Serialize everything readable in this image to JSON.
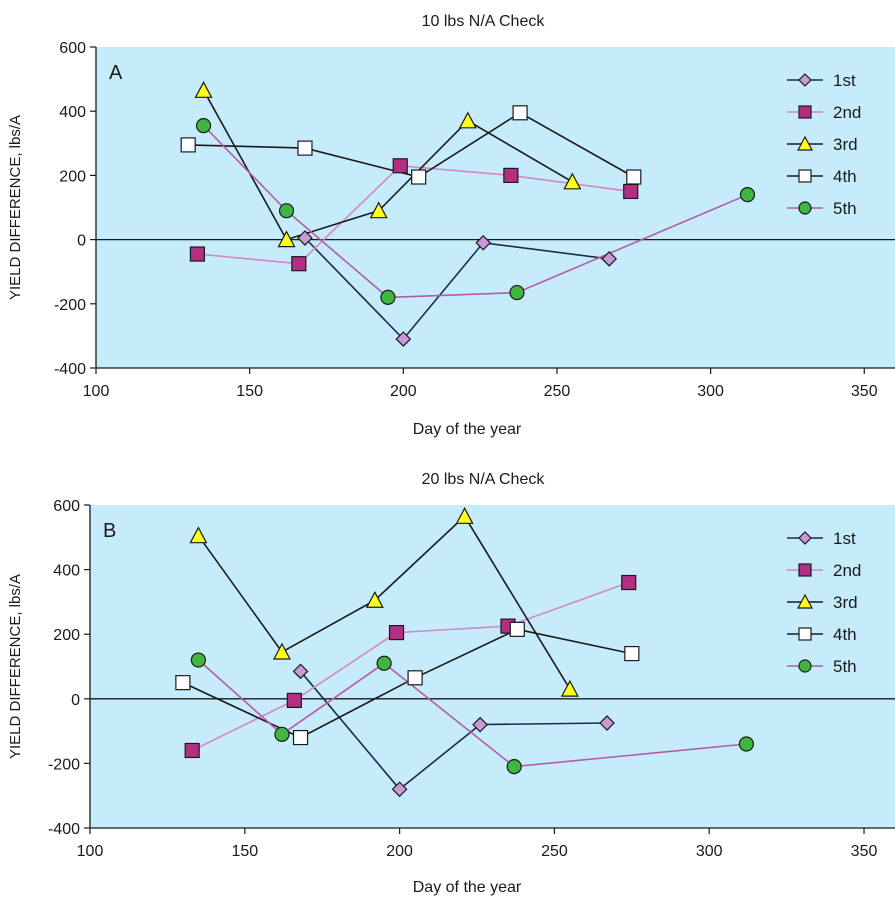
{
  "chart_data": [
    {
      "type": "line",
      "panel_label": "A",
      "title": "10 lbs N/A Check",
      "xlabel": "Day of the year",
      "ylabel": "YIELD DIFFERENCE, lbs/A",
      "xlim": [
        100,
        360
      ],
      "ylim": [
        -400,
        600
      ],
      "xticks": [
        100,
        150,
        200,
        250,
        300,
        350
      ],
      "yticks": [
        -400,
        -200,
        0,
        200,
        400,
        600
      ],
      "zero_line": true,
      "legend_position": "right",
      "series": [
        {
          "name": "1st",
          "marker": "diamond",
          "color": "#c99ad8",
          "line_color": "#1c2b48",
          "x": [
            168,
            200,
            226,
            267
          ],
          "y": [
            5,
            -310,
            -10,
            -60
          ]
        },
        {
          "name": "2nd",
          "marker": "square",
          "color": "#b22f84",
          "line_color": "#d488c2",
          "x": [
            133,
            166,
            199,
            235,
            274
          ],
          "y": [
            -45,
            -75,
            230,
            200,
            150
          ]
        },
        {
          "name": "3rd",
          "marker": "triangle",
          "color": "#ffff1a",
          "line_color": "#1a1a1a",
          "x": [
            135,
            162,
            192,
            221,
            255
          ],
          "y": [
            465,
            0,
            90,
            370,
            180
          ]
        },
        {
          "name": "4th",
          "marker": "open-square",
          "color": "#ffffff",
          "line_color": "#1a1a1a",
          "x": [
            130,
            168,
            205,
            238,
            275
          ],
          "y": [
            295,
            285,
            195,
            395,
            195
          ]
        },
        {
          "name": "5th",
          "marker": "circle",
          "color": "#3fb63f",
          "line_color": "#b45aa8",
          "x": [
            135,
            162,
            195,
            237,
            312
          ],
          "y": [
            355,
            90,
            -180,
            -165,
            140
          ]
        }
      ]
    },
    {
      "type": "line",
      "panel_label": "B",
      "title": "20 lbs N/A Check",
      "xlabel": "Day of the year",
      "ylabel": "YIELD DIFFERENCE, lbs/A",
      "xlim": [
        100,
        360
      ],
      "ylim": [
        -400,
        600
      ],
      "xticks": [
        100,
        150,
        200,
        250,
        300,
        350
      ],
      "yticks": [
        -400,
        -200,
        0,
        200,
        400,
        600
      ],
      "zero_line": true,
      "legend_position": "right",
      "series": [
        {
          "name": "1st",
          "marker": "diamond",
          "color": "#c99ad8",
          "line_color": "#1c2b48",
          "x": [
            168,
            200,
            226,
            267
          ],
          "y": [
            85,
            -280,
            -80,
            -75
          ]
        },
        {
          "name": "2nd",
          "marker": "square",
          "color": "#b22f84",
          "line_color": "#d488c2",
          "x": [
            133,
            166,
            199,
            235,
            274
          ],
          "y": [
            -160,
            -5,
            205,
            225,
            360
          ]
        },
        {
          "name": "3rd",
          "marker": "triangle",
          "color": "#ffff1a",
          "line_color": "#1a1a1a",
          "x": [
            135,
            162,
            192,
            221,
            255
          ],
          "y": [
            505,
            145,
            305,
            565,
            30
          ]
        },
        {
          "name": "4th",
          "marker": "open-square",
          "color": "#ffffff",
          "line_color": "#1a1a1a",
          "x": [
            130,
            168,
            205,
            238,
            275
          ],
          "y": [
            50,
            -120,
            65,
            215,
            140
          ]
        },
        {
          "name": "5th",
          "marker": "circle",
          "color": "#3fb63f",
          "line_color": "#b45aa8",
          "x": [
            135,
            162,
            195,
            237,
            312
          ],
          "y": [
            120,
            -110,
            110,
            -210,
            -140
          ]
        }
      ]
    }
  ],
  "style": {
    "plot_background": "#c6ecfb",
    "axis_color": "#1a1a1a"
  }
}
